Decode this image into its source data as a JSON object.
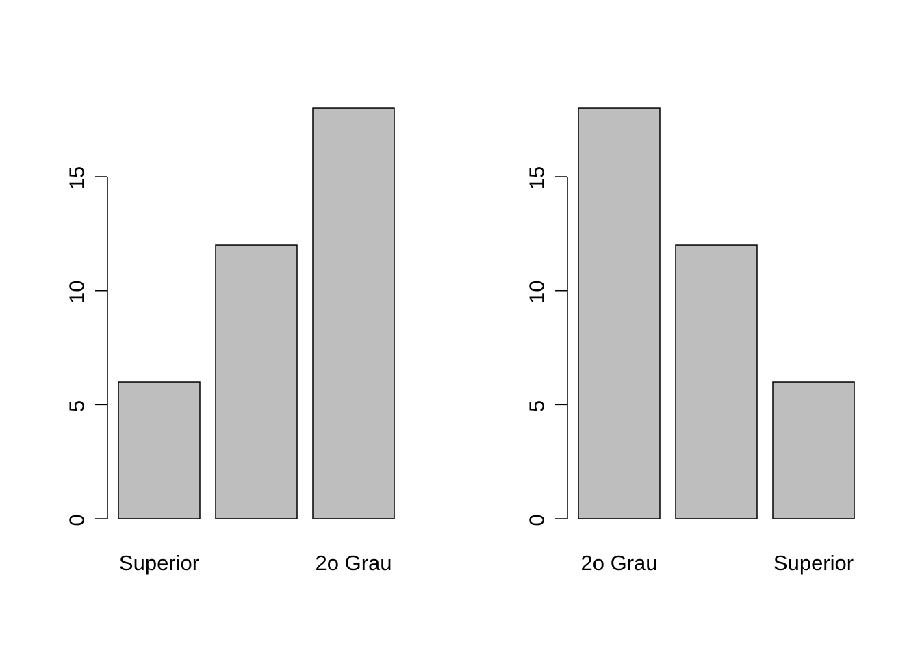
{
  "chart_data": [
    {
      "type": "bar",
      "categories": [
        "Superior",
        "",
        "2o Grau"
      ],
      "values": [
        6,
        12,
        18
      ],
      "title": "",
      "xlabel": "",
      "ylabel": "",
      "ylim": [
        0,
        18
      ],
      "yticks": [
        0,
        5,
        10,
        15
      ],
      "ytick_labels": [
        "0",
        "5",
        "10",
        "15"
      ],
      "bar_color": "#bebebe",
      "grid": false
    },
    {
      "type": "bar",
      "categories": [
        "2o Grau",
        "",
        "Superior"
      ],
      "values": [
        18,
        12,
        6
      ],
      "title": "",
      "xlabel": "",
      "ylabel": "",
      "ylim": [
        0,
        18
      ],
      "yticks": [
        0,
        5,
        10,
        15
      ],
      "ytick_labels": [
        "0",
        "5",
        "10",
        "15"
      ],
      "bar_color": "#bebebe",
      "grid": false
    }
  ]
}
